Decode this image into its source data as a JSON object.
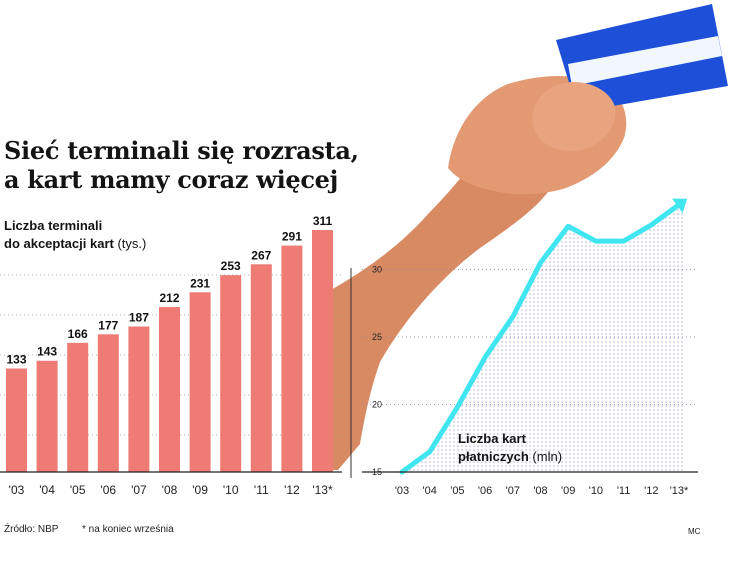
{
  "colors": {
    "bar": "#ee7b74",
    "line": "#3fe6f0",
    "dots": "#b9b2e8",
    "card": "#1e4fd8",
    "skin": "#d88a62"
  },
  "title": {
    "line1": "Sieć terminali się rozrasta,",
    "line2": "a kart mamy coraz więcej"
  },
  "footer": {
    "source": "Źródło: NBP",
    "note": "* na koniec września",
    "author": "MC"
  },
  "chart_data": [
    {
      "type": "bar",
      "label_line1": "Liczba terminali",
      "label_line2": "do akceptacji kart",
      "unit": "(tys.)",
      "categories": [
        "'03",
        "'04",
        "'05",
        "'06",
        "'07",
        "'08",
        "'09",
        "'10",
        "'11",
        "'12",
        "'13*"
      ],
      "values": [
        133,
        143,
        166,
        177,
        187,
        212,
        231,
        253,
        267,
        291,
        311
      ],
      "value_labels": [
        "133",
        "143",
        "166",
        "177",
        "187",
        "212",
        "231",
        "253",
        "267",
        "291",
        "311"
      ],
      "ylim": [
        0,
        340
      ],
      "grid": "horizontal dotted"
    },
    {
      "type": "area",
      "label_line1": "Liczba kart",
      "label_line2": "płatniczych",
      "unit": "(mln)",
      "categories": [
        "'03",
        "'04",
        "'05",
        "'06",
        "'07",
        "'08",
        "'09",
        "'10",
        "'11",
        "'12",
        "'13*"
      ],
      "values": [
        15,
        16.5,
        19.8,
        23.5,
        26.5,
        30.5,
        33.2,
        32.1,
        32.1,
        33.3,
        34.8
      ],
      "yticks": [
        "15",
        "20",
        "25",
        "30"
      ],
      "ylim": [
        15,
        35
      ],
      "grid": "horizontal dotted"
    }
  ]
}
